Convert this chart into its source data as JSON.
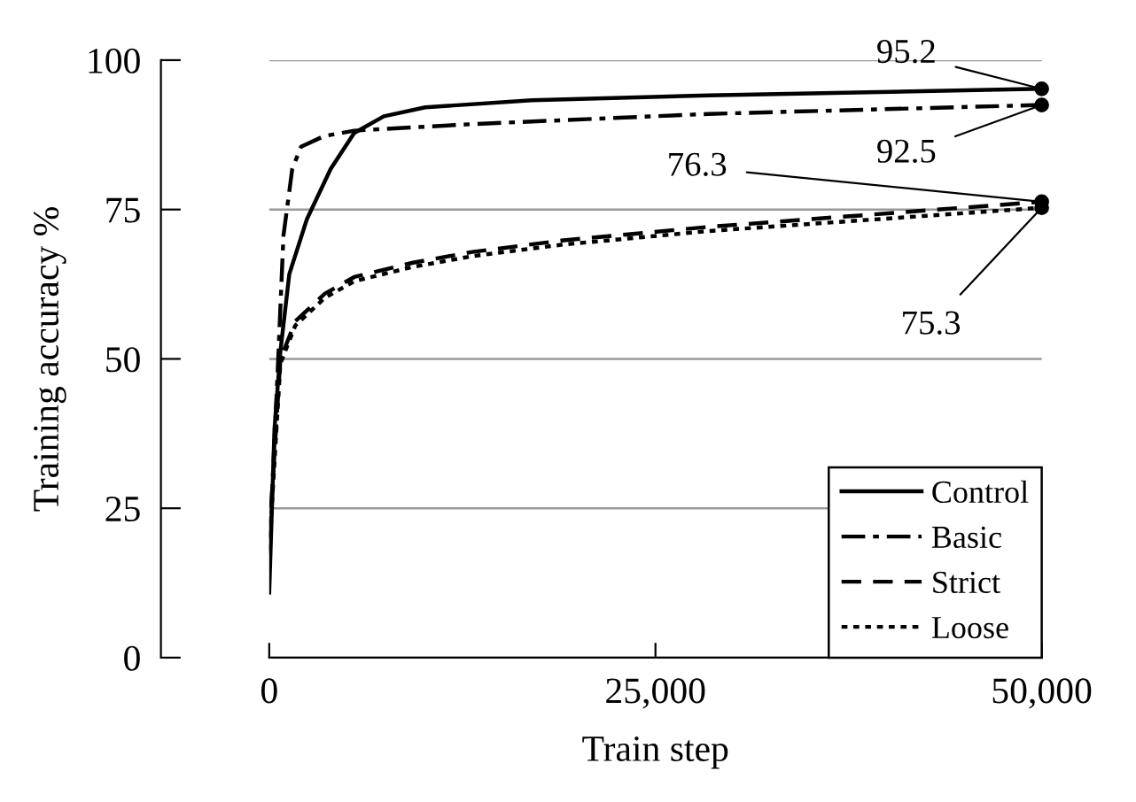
{
  "chart_data": {
    "type": "line",
    "xlabel": "Train step",
    "ylabel": "Training accuracy %",
    "xlim": [
      0,
      50000
    ],
    "ylim": [
      0,
      100
    ],
    "xticks": [
      0,
      {
        "value": 25000,
        "label": "25,000"
      },
      {
        "value": 50000,
        "label": "50,000"
      }
    ],
    "yticks": [
      0,
      25,
      50,
      75,
      100
    ],
    "grid": "y",
    "legend": "bottom right",
    "series": [
      {
        "name": "Control",
        "color": "#000000",
        "line_style": "solid",
        "x": [
          0,
          340,
          720,
          1300,
          2440,
          3980,
          5500,
          7420,
          10100,
          17000,
          28440,
          50000
        ],
        "values": [
          10.9,
          38.3,
          51.2,
          64.2,
          73.4,
          81.8,
          87.8,
          90.6,
          92.1,
          93.3,
          94.1,
          95.2
        ],
        "value_labels": [
          null,
          null,
          null,
          null,
          null,
          null,
          null,
          null,
          null,
          null,
          null,
          "95.2"
        ]
      },
      {
        "name": "Basic",
        "color": "#000000",
        "line_style": "dashdot",
        "x": [
          0,
          540,
          920,
          1490,
          2060,
          3560,
          5500,
          13150,
          28440,
          50000
        ],
        "values": [
          17.5,
          47.5,
          70.6,
          81.8,
          85.5,
          87.3,
          88.2,
          89.3,
          91.0,
          92.5
        ],
        "value_labels": [
          null,
          null,
          null,
          null,
          null,
          null,
          null,
          null,
          null,
          "92.5"
        ]
      },
      {
        "name": "Strict",
        "color": "#000000",
        "line_style": "dashed",
        "x": [
          0,
          720,
          1690,
          3590,
          5500,
          9300,
          13150,
          18900,
          28440,
          50000
        ],
        "values": [
          20,
          49.9,
          56.3,
          60.9,
          63.7,
          66.1,
          67.9,
          69.8,
          72.1,
          76.3
        ],
        "value_labels": [
          null,
          null,
          null,
          null,
          null,
          null,
          null,
          null,
          null,
          "76.3"
        ]
      },
      {
        "name": "Loose",
        "color": "#000000",
        "line_style": "dotted",
        "x": [
          0,
          720,
          1690,
          3590,
          5500,
          9300,
          13150,
          18900,
          28440,
          50000
        ],
        "values": [
          18,
          49.2,
          55.6,
          60.2,
          63.0,
          65.4,
          67.2,
          69.1,
          71.4,
          75.3
        ],
        "value_labels": [
          null,
          null,
          null,
          null,
          null,
          null,
          null,
          null,
          null,
          "75.3"
        ]
      }
    ]
  }
}
